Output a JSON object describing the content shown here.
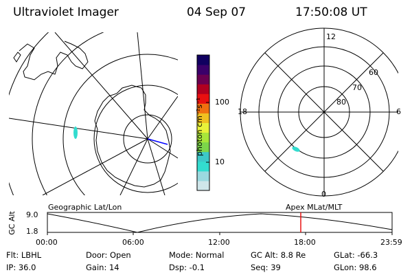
{
  "header": {
    "title": "Ultraviolet Imager",
    "date": "04 Sep 07",
    "time": "17:50:08 UT"
  },
  "left_panel": {
    "label": "Geographic Lat/Lon",
    "colors": {
      "map_outline": "#000000",
      "aurora": "#33dccf",
      "gridline": "#000000",
      "marker": "#0000ff"
    }
  },
  "color_bar": {
    "unit_label": "photon cm⁻²s⁻¹",
    "tick_100": "100",
    "tick_10": "10",
    "colors": [
      "#cfe6ea",
      "#9bd9df",
      "#33dccf",
      "#3cc8c8",
      "#7cd64a",
      "#a8e63a",
      "#e8f23a",
      "#f0c020",
      "#f07010",
      "#e81010",
      "#b00020",
      "#6a0050",
      "#3a006a",
      "#100060"
    ]
  },
  "right_panel": {
    "label": "Apex MLat/MLT",
    "mlt_12": "12",
    "mlt_18": "18",
    "mlt_6": "6",
    "mlt_0": "0",
    "lat_60": "60",
    "lat_70": "70",
    "lat_80": "80"
  },
  "alt_plot": {
    "ylabel": "GC Alt",
    "tick_9": "9.0",
    "tick_18": "1.8",
    "x_ticks": [
      "00:00",
      "06:00",
      "12:00",
      "18:00",
      "23:59"
    ],
    "current_time_marker_color": "#e81010"
  },
  "info": {
    "flt": "Flt: LBHL",
    "ip": "IP: 36.0",
    "door": "Door: Open",
    "gain": "Gain: 14",
    "mode": "Mode: Normal",
    "dsp": "Dsp:    -0.1",
    "gcalt": "GC Alt: 8.8 Re",
    "seq": "Seq: 39",
    "glat": "GLat:  -66.3",
    "glon": "GLon:   98.6"
  }
}
